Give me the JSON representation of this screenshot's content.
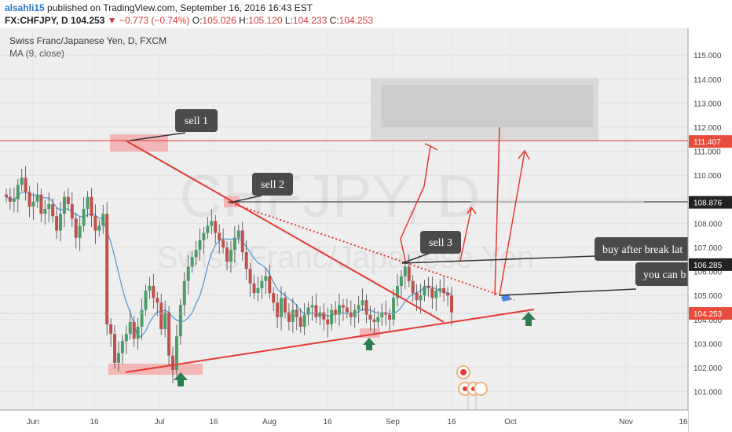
{
  "header": {
    "author": "alsahli15",
    "published": "published on TradingView.com, September 16, 2016 16:43 EST",
    "symbol": "FX:CHFJPY, D",
    "last": "104.253",
    "change": "−0.773 (−0.74%)",
    "o_label": "O:",
    "o": "105.026",
    "h_label": "H:",
    "h": "105.120",
    "l_label": "L:",
    "l": "104.233",
    "c_label": "C:",
    "c": "104.253"
  },
  "legend": {
    "title": "Swiss Franc/Japanese Yen, D, FXCM",
    "indicator": "MA (9, close)"
  },
  "watermark": {
    "symbol": "CHFJPY, D",
    "name": "Swiss Franc/Japanese Yen"
  },
  "price_axis": {
    "ticks": [
      "115.000",
      "114.000",
      "113.000",
      "112.000",
      "111.000",
      "110.000",
      "109.000",
      "108.000",
      "107.000",
      "106.000",
      "105.000",
      "104.000",
      "103.000",
      "102.000",
      "101.000"
    ],
    "badges": [
      {
        "label": "111.407",
        "color": "#e74c3c"
      },
      {
        "label": "108.876",
        "color": "#222222"
      },
      {
        "label": "106.285",
        "color": "#222222"
      },
      {
        "label": "104.253",
        "color": "#e74c3c"
      }
    ]
  },
  "time_axis": {
    "labels": [
      "Jun",
      "16",
      "Jul",
      "16",
      "Aug",
      "16",
      "Sep",
      "16",
      "Oct",
      "Nov",
      "16"
    ]
  },
  "annotations": {
    "sell1": "sell 1",
    "sell2": "sell 2",
    "sell3": "sell 3",
    "buy_break": "buy after break lat",
    "you_can": "you can b"
  },
  "colors": {
    "up": "#4a9e6a",
    "down": "#c0504d",
    "ma": "#5b9bd5",
    "trend": "#e53935",
    "tooltip": "#4a4a4a",
    "accent": "#2b78c6"
  },
  "chart_data": {
    "type": "candlestick",
    "instrument": "FX:CHFJPY",
    "interval": "D",
    "ylim": [
      100.2,
      115.6
    ],
    "levels": [
      108.876,
      106.285
    ],
    "last_price": 104.253,
    "candles_close": [
      109.1,
      108.9,
      109.0,
      109.6,
      109.9,
      109.3,
      108.7,
      108.9,
      109.2,
      108.4,
      108.6,
      108.8,
      108.3,
      107.7,
      108.4,
      109.1,
      108.8,
      108.2,
      107.4,
      107.9,
      108.6,
      109.1,
      108.3,
      107.7,
      107.9,
      108.4,
      103.8,
      103.4,
      102.2,
      102.6,
      103.1,
      103.4,
      103.9,
      103.2,
      103.7,
      104.4,
      105.2,
      105.4,
      104.9,
      104.7,
      103.6,
      104.3,
      102.5,
      101.9,
      103.3,
      104.6,
      105.6,
      106.2,
      106.6,
      106.9,
      107.3,
      107.6,
      107.9,
      108.1,
      107.6,
      107.3,
      107.0,
      106.4,
      106.9,
      107.4,
      107.7,
      106.8,
      106.1,
      105.5,
      105.1,
      105.3,
      105.6,
      105.8,
      105.1,
      104.7,
      104.1,
      104.9,
      104.3,
      103.9,
      104.4,
      104.1,
      103.7,
      104.2,
      104.5,
      104.6,
      104.1,
      104.3,
      104.0,
      103.8,
      104.4,
      104.2,
      104.6,
      104.5,
      104.3,
      104.1,
      104.4,
      104.6,
      104.8,
      104.2,
      104.0,
      103.9,
      104.1,
      104.3,
      104.2,
      104.0,
      104.9,
      105.4,
      105.8,
      106.2,
      105.6,
      105.1,
      104.8,
      105.0,
      105.4,
      105.3,
      104.9,
      105.2,
      105.3,
      105.1,
      105.0,
      104.3
    ]
  }
}
